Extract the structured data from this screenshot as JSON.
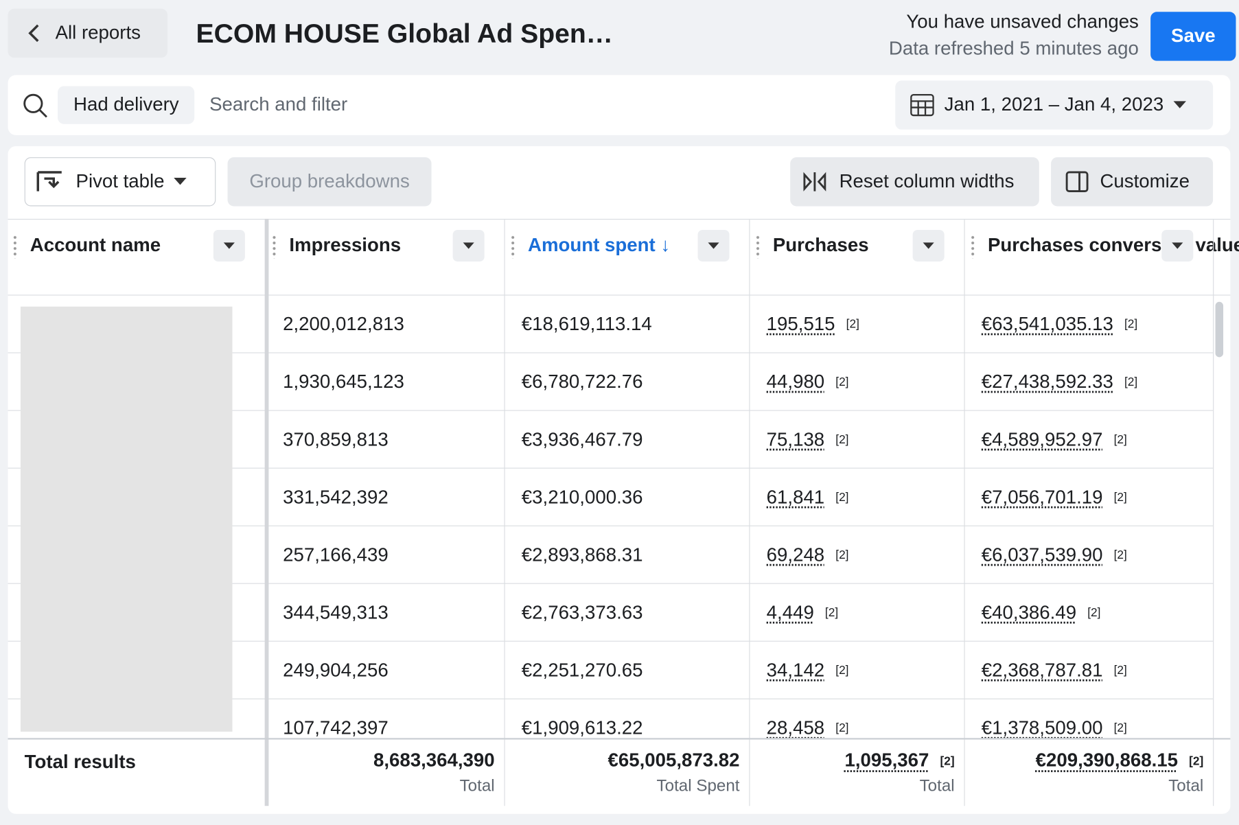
{
  "header": {
    "back": "All reports",
    "title": "ECOM HOUSE Global Ad Spen…",
    "status": "You have unsaved changes",
    "refreshed": "Data refreshed 5 minutes ago",
    "save": "Save"
  },
  "filter": {
    "chip": "Had delivery",
    "placeholder": "Search and filter",
    "date_range": "Jan 1, 2021 – Jan 4, 2023"
  },
  "toolbar": {
    "view": "Pivot table",
    "group": "Group breakdowns",
    "reset": "Reset column widths",
    "customize": "Customize"
  },
  "table": {
    "columns": [
      "Account name",
      "Impressions",
      "Amount spent ↓",
      "Purchases",
      "Purchases conversion value"
    ],
    "note": "[2]",
    "rows": [
      [
        "2,200,012,813",
        "€18,619,113.14",
        "195,515",
        "€63,541,035.13"
      ],
      [
        "1,930,645,123",
        "€6,780,722.76",
        "44,980",
        "€27,438,592.33"
      ],
      [
        "370,859,813",
        "€3,936,467.79",
        "75,138",
        "€4,589,952.97"
      ],
      [
        "331,542,392",
        "€3,210,000.36",
        "61,841",
        "€7,056,701.19"
      ],
      [
        "257,166,439",
        "€2,893,868.31",
        "69,248",
        "€6,037,539.90"
      ],
      [
        "344,549,313",
        "€2,763,373.63",
        "4,449",
        "€40,386.49"
      ],
      [
        "249,904,256",
        "€2,251,270.65",
        "34,142",
        "€2,368,787.81"
      ],
      [
        "107,742,397",
        "€1,909,613.22",
        "28,458",
        "€1,378,509.00"
      ]
    ],
    "totals": {
      "label": "Total results",
      "values": [
        "8,683,364,390",
        "€65,005,873.82",
        "1,095,367",
        "€209,390,868.15"
      ],
      "sublabels": [
        "Total",
        "Total Spent",
        "Total",
        "Total"
      ]
    }
  }
}
